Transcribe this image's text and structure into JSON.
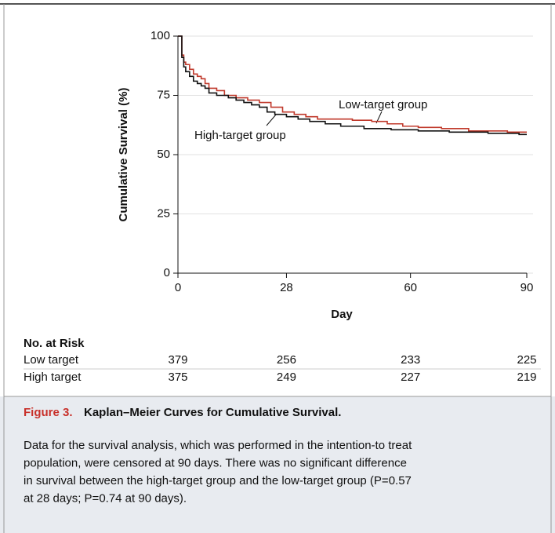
{
  "chart_data": {
    "type": "step",
    "ylabel": "Cumulative Survival (%)",
    "xlabel": "Day",
    "xlim": [
      0,
      90
    ],
    "xticks": [
      0,
      28,
      60,
      90
    ],
    "ylim": [
      0,
      100
    ],
    "yticks": [
      0,
      25,
      50,
      75,
      100
    ],
    "grid": true,
    "series": [
      {
        "name": "Low-target group",
        "color": "#c0392b",
        "x": [
          0,
          1,
          1.5,
          2,
          3,
          4,
          5,
          6,
          7,
          8,
          10,
          12,
          15,
          18,
          21,
          24,
          27,
          30,
          33,
          36,
          45,
          50,
          54,
          58,
          62,
          68,
          75,
          85,
          90
        ],
        "values": [
          100,
          92,
          89,
          88,
          86,
          84,
          83,
          82,
          80,
          78,
          77,
          75,
          74,
          73,
          72,
          70,
          68,
          67,
          66,
          65,
          64.5,
          64,
          63,
          62,
          61.5,
          61,
          60,
          59.5,
          59.5
        ]
      },
      {
        "name": "High-target group",
        "color": "#111111",
        "x": [
          0,
          1,
          1.5,
          2,
          3,
          4,
          5,
          6,
          7,
          8,
          10,
          13,
          15,
          17,
          19,
          21,
          23,
          25,
          28,
          31,
          34,
          38,
          42,
          48,
          55,
          62,
          70,
          80,
          88,
          90
        ],
        "values": [
          100,
          91,
          87,
          85,
          83,
          81,
          80,
          79,
          78,
          76,
          75,
          74,
          73,
          72,
          71,
          70,
          68,
          67,
          66,
          65,
          64,
          63,
          62,
          61,
          60.5,
          60,
          59.5,
          59,
          58.5,
          58.5
        ]
      }
    ]
  },
  "risk_table": {
    "title": "No. at Risk",
    "rows": [
      {
        "label": "Low target",
        "values": [
          379,
          256,
          233,
          225
        ]
      },
      {
        "label": "High target",
        "values": [
          375,
          249,
          227,
          219
        ]
      }
    ]
  },
  "caption": {
    "label": "Figure 3.",
    "title": "Kaplan–Meier Curves for Cumulative Survival.",
    "lines": [
      "Data for the survival analysis, which was performed in the intention-to treat",
      "population, were censored at 90 days. There was no significant difference",
      "in survival between the high-target group and the low-target group (P=0.57",
      "at 28 days; P=0.74 at 90 days)."
    ]
  }
}
